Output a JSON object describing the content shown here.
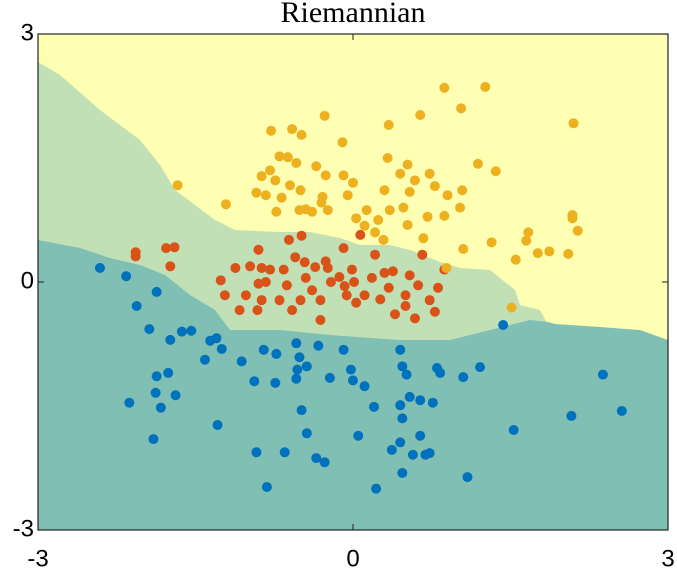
{
  "chart_data": {
    "type": "scatter",
    "title": "Riemannian",
    "xlim": [
      -3,
      3
    ],
    "ylim": [
      -3,
      3
    ],
    "xticks": [
      -3,
      0,
      3
    ],
    "yticks": [
      -3,
      0,
      3
    ],
    "series": [
      {
        "color": "#0072bd",
        "x": [
          -2.41,
          -2.16,
          -1.87,
          -2.06,
          -1.94,
          -1.74,
          -1.63,
          -1.54,
          -1.36,
          -1.3,
          -1.41,
          -1.25,
          -1.06,
          -0.85,
          -0.73,
          -0.54,
          -0.33,
          -0.09,
          -0.51,
          -0.53,
          -0.44,
          -0.74,
          -0.54,
          -0.22,
          -0.02,
          0.0,
          0.11,
          0.45,
          0.47,
          0.51,
          0.8,
          0.83,
          1.05,
          1.21,
          1.43,
          -1.87,
          -1.76,
          -1.88,
          -1.69,
          -1.83,
          -2.13,
          -1.9,
          -1.29,
          -0.94,
          -0.49,
          -0.44,
          -0.65,
          -0.92,
          -0.35,
          -0.27,
          0.05,
          0.2,
          0.45,
          0.54,
          0.64,
          0.76,
          0.47,
          0.64,
          0.45,
          0.37,
          0.57,
          0.69,
          0.73,
          0.47,
          1.09,
          0.22,
          -0.82,
          1.53,
          2.08,
          2.38,
          2.56
        ],
        "values": [
          0.17,
          0.07,
          -0.12,
          -0.29,
          -0.57,
          -0.7,
          -0.6,
          -0.59,
          -0.71,
          -0.68,
          -0.94,
          -0.81,
          -0.96,
          -0.82,
          -0.87,
          -0.74,
          -0.77,
          -0.82,
          -0.91,
          -1.06,
          -1.02,
          -1.22,
          -1.17,
          -1.16,
          -1.06,
          -1.19,
          -1.26,
          -0.82,
          -1.02,
          -1.12,
          -1.04,
          -1.1,
          -1.15,
          -1.03,
          -0.52,
          -1.14,
          -1.1,
          -1.34,
          -1.37,
          -1.52,
          -1.46,
          -1.9,
          -1.73,
          -1.2,
          -1.55,
          -1.83,
          -2.06,
          -2.06,
          -2.13,
          -2.18,
          -1.86,
          -1.51,
          -1.49,
          -1.39,
          -1.43,
          -1.46,
          -1.65,
          -1.86,
          -1.94,
          -2.03,
          -2.09,
          -2.09,
          -2.07,
          -2.31,
          -2.36,
          -2.5,
          -2.48,
          -1.79,
          -1.62,
          -1.12,
          -1.56
        ]
      },
      {
        "color": "#d95319",
        "x": [
          -2.07,
          -2.07,
          -1.78,
          -1.7,
          -1.74,
          -1.26,
          -1.22,
          -1.12,
          -1.02,
          -0.98,
          -0.9,
          -0.91,
          -0.87,
          -0.79,
          -0.83,
          -0.7,
          -0.63,
          -0.66,
          -0.61,
          -0.55,
          -0.49,
          -0.5,
          -0.45,
          -0.39,
          -0.36,
          -0.31,
          -0.26,
          -0.21,
          -0.24,
          -0.13,
          -0.08,
          -0.06,
          -0.01,
          0.01,
          0.03,
          -0.09,
          0.07,
          0.11,
          0.18,
          0.21,
          0.26,
          0.3,
          0.34,
          0.38,
          0.4,
          0.5,
          0.5,
          0.54,
          0.59,
          0.62,
          0.66,
          0.73,
          0.78,
          0.81,
          0.87,
          -0.31,
          -0.58,
          -0.46,
          -0.87,
          -1.08,
          -0.9
        ],
        "values": [
          0.36,
          0.31,
          0.41,
          0.42,
          0.19,
          0.02,
          -0.16,
          0.17,
          -0.16,
          0.19,
          -0.02,
          -0.34,
          0.17,
          0.15,
          0.0,
          -0.22,
          -0.04,
          0.15,
          0.51,
          0.3,
          0.56,
          -0.22,
          0.05,
          -0.1,
          0.18,
          -0.22,
          0.25,
          0.0,
          0.17,
          0.06,
          -0.05,
          -0.16,
          0.15,
          0.0,
          -0.25,
          0.41,
          0.57,
          -0.16,
          0.05,
          0.33,
          -0.21,
          0.11,
          -0.07,
          0.13,
          -0.39,
          -0.16,
          -0.29,
          0.08,
          -0.44,
          -0.04,
          0.33,
          -0.22,
          -0.36,
          -0.07,
          0.15,
          -0.46,
          -0.34,
          0.24,
          -0.22,
          -0.34,
          0.39
        ]
      },
      {
        "color": "#edb120",
        "x": [
          -1.67,
          -1.21,
          -0.78,
          -0.58,
          -0.49,
          -0.27,
          -0.1,
          -0.26,
          -0.35,
          -0.62,
          -0.54,
          -0.92,
          -0.83,
          -0.74,
          -0.6,
          -0.5,
          -0.45,
          -0.39,
          -0.3,
          -0.24,
          -0.29,
          -0.51,
          -0.73,
          -0.68,
          -0.87,
          -0.79,
          -0.7,
          -0.09,
          -0.05,
          0.0,
          0.03,
          0.11,
          0.21,
          0.24,
          0.29,
          0.34,
          0.33,
          0.45,
          0.52,
          0.54,
          0.59,
          0.64,
          0.73,
          0.78,
          0.87,
          0.9,
          1.02,
          1.04,
          0.87,
          1.03,
          1.26,
          1.19,
          1.36,
          1.32,
          1.05,
          0.89,
          0.67,
          0.52,
          0.71,
          1.55,
          1.67,
          1.76,
          1.65,
          1.87,
          2.05,
          2.09,
          2.1,
          2.14,
          2.09,
          1.51,
          0.3,
          0.13,
          0.35,
          0.48
        ],
        "values": [
          1.17,
          0.94,
          1.83,
          1.85,
          1.78,
          2.01,
          1.69,
          1.29,
          1.4,
          1.51,
          1.44,
          1.08,
          1.05,
          1.23,
          1.17,
          1.11,
          0.88,
          0.85,
          0.96,
          0.87,
          1.03,
          0.87,
          0.85,
          1.02,
          1.28,
          1.35,
          1.52,
          1.29,
          1.05,
          1.2,
          0.77,
          0.68,
          0.6,
          0.75,
          0.51,
          1.9,
          1.5,
          1.31,
          1.42,
          1.09,
          1.23,
          2.02,
          1.31,
          1.16,
          0.8,
          1.05,
          0.9,
          1.11,
          2.35,
          2.1,
          2.36,
          1.43,
          1.34,
          0.48,
          0.4,
          0.17,
          0.53,
          0.69,
          0.79,
          0.27,
          0.6,
          0.35,
          0.5,
          0.37,
          0.34,
          0.81,
          1.92,
          0.62,
          0.77,
          -0.31,
          1.11,
          0.87,
          0.87,
          0.9
        ]
      }
    ]
  }
}
